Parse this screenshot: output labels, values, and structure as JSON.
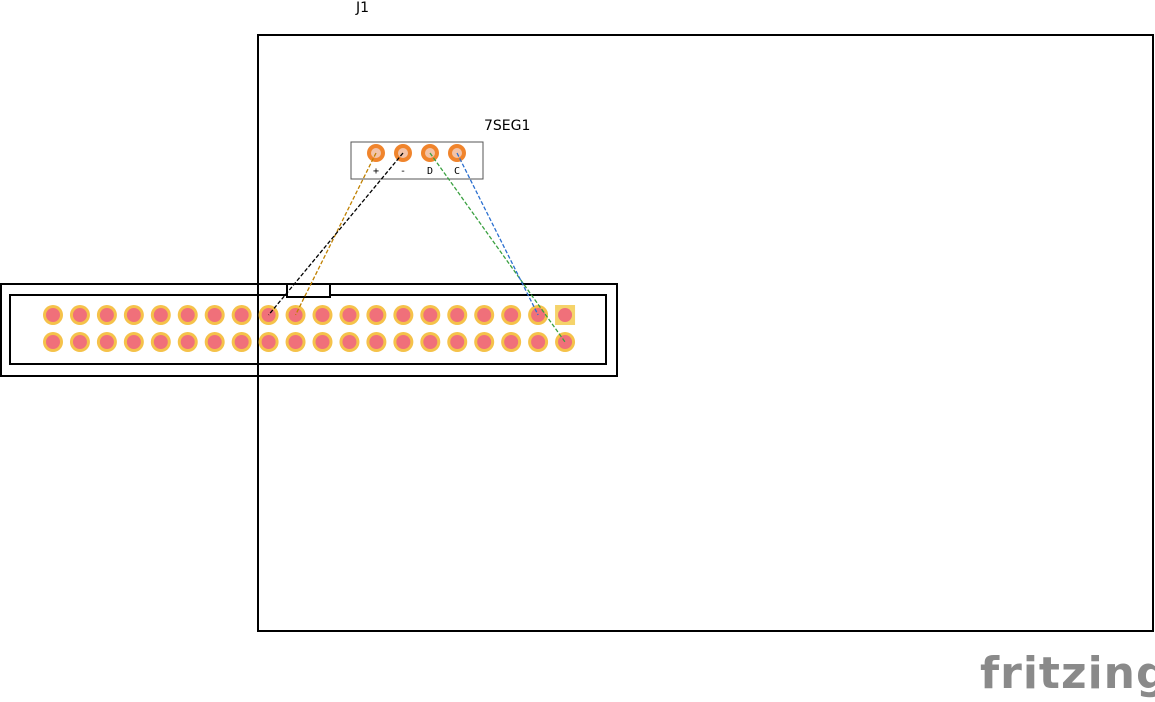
{
  "board": {
    "label": "J1"
  },
  "module": {
    "label": "7SEG1",
    "pins": [
      "+",
      "-",
      "D",
      "C"
    ]
  },
  "header": {
    "columns": 20,
    "rows": 2
  },
  "wires": [
    {
      "name": "wire-plus",
      "from": "module.+",
      "to": "header top row pin 10",
      "color": "#c08000"
    },
    {
      "name": "wire-minus",
      "from": "module.-",
      "to": "header top row pin 9",
      "color": "#000000"
    },
    {
      "name": "wire-d",
      "from": "module.D",
      "to": "header bottom row pin 20",
      "color": "#3aa040"
    },
    {
      "name": "wire-c",
      "from": "module.C",
      "to": "header top row pin 19",
      "color": "#2a6fd0"
    }
  ],
  "branding": {
    "logo_text": "fritzing"
  }
}
